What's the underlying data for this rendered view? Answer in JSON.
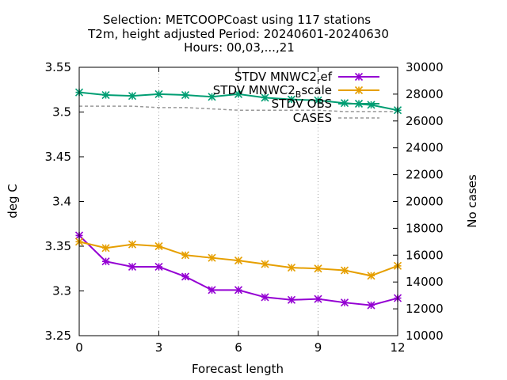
{
  "chart_data": {
    "type": "line",
    "title_lines": [
      "Selection: METCOOPCoast using   117 stations",
      "T2m, height adjusted   Period: 20240601-20240630",
      "Hours: 00,03,...,21"
    ],
    "xlabel": "Forecast length",
    "ylabel": "deg C",
    "y2label": "No cases",
    "xlim": [
      0,
      12
    ],
    "ylim": [
      3.25,
      3.55
    ],
    "y2lim": [
      10000,
      30000
    ],
    "xticks": [
      "0",
      "3",
      "6",
      "9",
      "12"
    ],
    "yticks": [
      "3.25",
      "3.3",
      "3.35",
      "3.4",
      "3.45",
      "3.5",
      "3.55"
    ],
    "y2ticks": [
      "10000",
      "12000",
      "14000",
      "16000",
      "18000",
      "20000",
      "22000",
      "24000",
      "26000",
      "28000",
      "30000"
    ],
    "grid": true,
    "legend_position": "top-right",
    "x": [
      0,
      1,
      2,
      3,
      4,
      5,
      6,
      7,
      8,
      9,
      10,
      11,
      12
    ],
    "series": [
      {
        "name": "STDV MNWC2_ref",
        "legend_main": "STDV MNWC2",
        "legend_sub": "r",
        "legend_tail": "ef",
        "color": "#9400d3",
        "axis": "y",
        "marker": "star",
        "values": [
          3.362,
          3.333,
          3.327,
          3.327,
          3.316,
          3.301,
          3.301,
          3.293,
          3.29,
          3.291,
          3.287,
          3.284,
          3.292
        ]
      },
      {
        "name": "STDV MNWC2_Bscale",
        "legend_main": "STDV MNWC2",
        "legend_sub": "B",
        "legend_tail": "scale",
        "color": "#e69f00",
        "axis": "y",
        "marker": "star",
        "values": [
          3.355,
          3.348,
          3.352,
          3.35,
          3.34,
          3.337,
          3.334,
          3.33,
          3.326,
          3.325,
          3.323,
          3.317,
          3.328
        ]
      },
      {
        "name": "STDV OBS",
        "legend_main": "STDV OBS",
        "legend_sub": "",
        "legend_tail": "",
        "color": "#009e73",
        "axis": "y",
        "marker": "star",
        "values": [
          3.522,
          3.519,
          3.518,
          3.52,
          3.519,
          3.517,
          3.52,
          3.516,
          3.514,
          3.513,
          3.51,
          3.508,
          3.502
        ]
      },
      {
        "name": "CASES",
        "legend_main": "CASES",
        "legend_sub": "",
        "legend_tail": "",
        "color": "#999999",
        "axis": "y2",
        "marker": "none",
        "dashed": true,
        "values": [
          27100,
          27100,
          27100,
          27000,
          27000,
          26900,
          26800,
          26800,
          26800,
          26800,
          26700,
          26700,
          26700
        ]
      }
    ]
  }
}
